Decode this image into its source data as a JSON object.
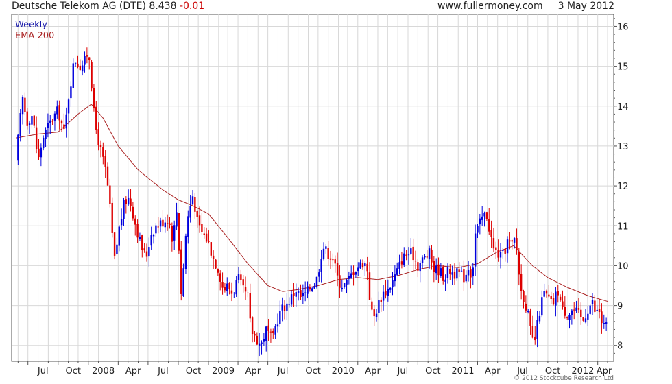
{
  "header": {
    "instrument": "Deutsche Telekom AG (DTE)",
    "last_price": "8.438",
    "change": "-0.01",
    "site": "www.fullermoney.com",
    "date": "3 May 2012"
  },
  "copyright": "© 2012 Stockcube Research Ltd",
  "colors": {
    "up_candle": "#0000dd",
    "down_candle": "#dd0000",
    "ema": "#aa2222",
    "grid": "#d8d8d8",
    "frame": "#555555"
  },
  "chart_data": {
    "type": "candlestick",
    "period": "Weekly",
    "legend": [
      {
        "label": "Weekly",
        "color": "#1a1aaa"
      },
      {
        "label": "EMA 200",
        "color": "#aa2222"
      }
    ],
    "legend_position": "top-left",
    "y_axis": {
      "position": "right",
      "ylim": [
        7.6,
        16.3
      ],
      "ticks": [
        8,
        9,
        10,
        11,
        12,
        13,
        14,
        15,
        16
      ]
    },
    "x_axis": {
      "start": "2007-05-25",
      "end": "2012-05-03",
      "ticks": [
        {
          "label": "Jul",
          "date": "2007-07-01"
        },
        {
          "label": "Oct",
          "date": "2007-10-01"
        },
        {
          "label": "2008",
          "date": "2008-01-01"
        },
        {
          "label": "Apr",
          "date": "2008-04-01"
        },
        {
          "label": "Jul",
          "date": "2008-07-01"
        },
        {
          "label": "Oct",
          "date": "2008-10-01"
        },
        {
          "label": "2009",
          "date": "2009-01-01"
        },
        {
          "label": "Apr",
          "date": "2009-04-01"
        },
        {
          "label": "Jul",
          "date": "2009-07-01"
        },
        {
          "label": "Oct",
          "date": "2009-10-01"
        },
        {
          "label": "2010",
          "date": "2010-01-01"
        },
        {
          "label": "Apr",
          "date": "2010-04-01"
        },
        {
          "label": "Jul",
          "date": "2010-07-01"
        },
        {
          "label": "Oct",
          "date": "2010-10-01"
        },
        {
          "label": "2011",
          "date": "2011-01-01"
        },
        {
          "label": "Apr",
          "date": "2011-04-01"
        },
        {
          "label": "Jul",
          "date": "2011-07-01"
        },
        {
          "label": "Oct",
          "date": "2011-10-01"
        },
        {
          "label": "2012",
          "date": "2012-01-01"
        },
        {
          "label": "Apr",
          "date": "2012-04-01"
        }
      ]
    },
    "grid": true,
    "close_series": [
      [
        "2007-05-25",
        12.6
      ],
      [
        "2007-06-05",
        13.5
      ],
      [
        "2007-06-15",
        14.2
      ],
      [
        "2007-06-28",
        13.6
      ],
      [
        "2007-07-15",
        13.8
      ],
      [
        "2007-08-01",
        12.6
      ],
      [
        "2007-08-15",
        13.2
      ],
      [
        "2007-09-01",
        13.5
      ],
      [
        "2007-09-15",
        13.7
      ],
      [
        "2007-10-01",
        13.9
      ],
      [
        "2007-10-20",
        13.3
      ],
      [
        "2007-11-01",
        14.2
      ],
      [
        "2007-11-20",
        15.2
      ],
      [
        "2007-12-05",
        15.0
      ],
      [
        "2007-12-20",
        15.1
      ],
      [
        "2008-01-01",
        15.4
      ],
      [
        "2008-01-08",
        15.0
      ],
      [
        "2008-01-15",
        14.0
      ],
      [
        "2008-01-25",
        13.4
      ],
      [
        "2008-02-10",
        12.8
      ],
      [
        "2008-02-25",
        12.3
      ],
      [
        "2008-03-10",
        11.2
      ],
      [
        "2008-03-20",
        10.1
      ],
      [
        "2008-04-05",
        11.0
      ],
      [
        "2008-04-20",
        11.6
      ],
      [
        "2008-05-05",
        11.7
      ],
      [
        "2008-05-25",
        11.0
      ],
      [
        "2008-06-10",
        10.5
      ],
      [
        "2008-06-25",
        10.2
      ],
      [
        "2008-07-10",
        10.8
      ],
      [
        "2008-07-25",
        11.0
      ],
      [
        "2008-08-15",
        11.1
      ],
      [
        "2008-09-01",
        11.2
      ],
      [
        "2008-09-15",
        10.6
      ],
      [
        "2008-09-25",
        11.5
      ],
      [
        "2008-10-05",
        10.2
      ],
      [
        "2008-10-12",
        9.0
      ],
      [
        "2008-10-20",
        10.5
      ],
      [
        "2008-11-01",
        11.3
      ],
      [
        "2008-11-15",
        11.8
      ],
      [
        "2008-11-30",
        11.0
      ],
      [
        "2008-12-15",
        10.8
      ],
      [
        "2009-01-01",
        10.6
      ],
      [
        "2009-01-15",
        10.2
      ],
      [
        "2009-02-01",
        9.9
      ],
      [
        "2009-02-15",
        9.4
      ],
      [
        "2009-03-01",
        9.5
      ],
      [
        "2009-03-15",
        9.3
      ],
      [
        "2009-04-01",
        9.7
      ],
      [
        "2009-04-15",
        9.4
      ],
      [
        "2009-05-01",
        9.2
      ],
      [
        "2009-05-10",
        8.4
      ],
      [
        "2009-05-25",
        8.2
      ],
      [
        "2009-06-10",
        8.0
      ],
      [
        "2009-06-25",
        8.4
      ],
      [
        "2009-07-05",
        8.3
      ],
      [
        "2009-07-15",
        8.1
      ],
      [
        "2009-07-25",
        8.5
      ],
      [
        "2009-08-10",
        8.9
      ],
      [
        "2009-08-25",
        9.0
      ],
      [
        "2009-09-10",
        9.2
      ],
      [
        "2009-09-25",
        9.4
      ],
      [
        "2009-10-10",
        9.2
      ],
      [
        "2009-10-25",
        9.3
      ],
      [
        "2009-11-10",
        9.5
      ],
      [
        "2009-11-25",
        9.6
      ],
      [
        "2009-12-05",
        10.0
      ],
      [
        "2009-12-15",
        10.5
      ],
      [
        "2010-01-01",
        10.3
      ],
      [
        "2010-01-15",
        10.2
      ],
      [
        "2010-02-01",
        9.6
      ],
      [
        "2010-02-15",
        9.5
      ],
      [
        "2010-03-01",
        9.6
      ],
      [
        "2010-03-20",
        9.9
      ],
      [
        "2010-04-05",
        10.0
      ],
      [
        "2010-04-20",
        10.1
      ],
      [
        "2010-05-01",
        9.9
      ],
      [
        "2010-05-10",
        8.9
      ],
      [
        "2010-05-20",
        8.7
      ],
      [
        "2010-06-01",
        9.0
      ],
      [
        "2010-06-15",
        9.3
      ],
      [
        "2010-07-01",
        9.4
      ],
      [
        "2010-07-15",
        9.6
      ],
      [
        "2010-08-01",
        9.9
      ],
      [
        "2010-08-15",
        10.2
      ],
      [
        "2010-09-01",
        10.3
      ],
      [
        "2010-09-15",
        10.3
      ],
      [
        "2010-10-01",
        10.0
      ],
      [
        "2010-10-20",
        10.2
      ],
      [
        "2010-11-05",
        10.3
      ],
      [
        "2010-11-20",
        9.9
      ],
      [
        "2010-12-05",
        9.9
      ],
      [
        "2010-12-20",
        9.7
      ],
      [
        "2011-01-05",
        9.9
      ],
      [
        "2011-01-20",
        9.8
      ],
      [
        "2011-02-05",
        9.8
      ],
      [
        "2011-02-20",
        9.7
      ],
      [
        "2011-03-05",
        10.0
      ],
      [
        "2011-03-15",
        9.7
      ],
      [
        "2011-03-25",
        10.8
      ],
      [
        "2011-04-05",
        11.0
      ],
      [
        "2011-04-15",
        11.2
      ],
      [
        "2011-04-28",
        11.3
      ],
      [
        "2011-05-10",
        10.8
      ],
      [
        "2011-05-20",
        10.4
      ],
      [
        "2011-06-01",
        10.3
      ],
      [
        "2011-06-15",
        10.2
      ],
      [
        "2011-07-01",
        10.6
      ],
      [
        "2011-07-15",
        10.5
      ],
      [
        "2011-07-25",
        10.7
      ],
      [
        "2011-08-03",
        10.0
      ],
      [
        "2011-08-10",
        9.4
      ],
      [
        "2011-08-20",
        9.2
      ],
      [
        "2011-09-01",
        8.8
      ],
      [
        "2011-09-10",
        8.3
      ],
      [
        "2011-09-20",
        8.0
      ],
      [
        "2011-09-30",
        8.5
      ],
      [
        "2011-10-10",
        9.0
      ],
      [
        "2011-10-20",
        9.3
      ],
      [
        "2011-11-01",
        9.2
      ],
      [
        "2011-11-15",
        9.0
      ],
      [
        "2011-12-01",
        9.4
      ],
      [
        "2011-12-15",
        8.9
      ],
      [
        "2012-01-01",
        8.8
      ],
      [
        "2012-01-15",
        8.9
      ],
      [
        "2012-02-01",
        8.8
      ],
      [
        "2012-02-15",
        8.6
      ],
      [
        "2012-03-01",
        8.9
      ],
      [
        "2012-03-15",
        9.1
      ],
      [
        "2012-03-25",
        8.8
      ],
      [
        "2012-04-05",
        8.9
      ],
      [
        "2012-04-15",
        8.5
      ],
      [
        "2012-04-25",
        8.5
      ],
      [
        "2012-05-03",
        8.438
      ]
    ],
    "ema_200": [
      [
        "2007-05-25",
        13.2
      ],
      [
        "2007-08-01",
        13.3
      ],
      [
        "2007-10-01",
        13.35
      ],
      [
        "2007-12-01",
        13.8
      ],
      [
        "2008-01-10",
        14.05
      ],
      [
        "2008-02-15",
        13.7
      ],
      [
        "2008-04-01",
        13.0
      ],
      [
        "2008-06-01",
        12.4
      ],
      [
        "2008-08-15",
        11.9
      ],
      [
        "2008-10-01",
        11.65
      ],
      [
        "2008-11-15",
        11.5
      ],
      [
        "2009-01-01",
        11.3
      ],
      [
        "2009-03-01",
        10.7
      ],
      [
        "2009-05-01",
        10.05
      ],
      [
        "2009-07-01",
        9.5
      ],
      [
        "2009-08-15",
        9.35
      ],
      [
        "2009-10-01",
        9.4
      ],
      [
        "2009-12-01",
        9.5
      ],
      [
        "2010-02-01",
        9.65
      ],
      [
        "2010-04-01",
        9.7
      ],
      [
        "2010-06-01",
        9.65
      ],
      [
        "2010-08-01",
        9.75
      ],
      [
        "2010-10-01",
        9.9
      ],
      [
        "2010-12-01",
        10.0
      ],
      [
        "2011-02-01",
        9.95
      ],
      [
        "2011-04-01",
        10.05
      ],
      [
        "2011-06-01",
        10.35
      ],
      [
        "2011-07-20",
        10.5
      ],
      [
        "2011-09-15",
        10.0
      ],
      [
        "2011-11-01",
        9.7
      ],
      [
        "2012-01-01",
        9.45
      ],
      [
        "2012-03-01",
        9.25
      ],
      [
        "2012-05-03",
        9.1
      ]
    ]
  }
}
